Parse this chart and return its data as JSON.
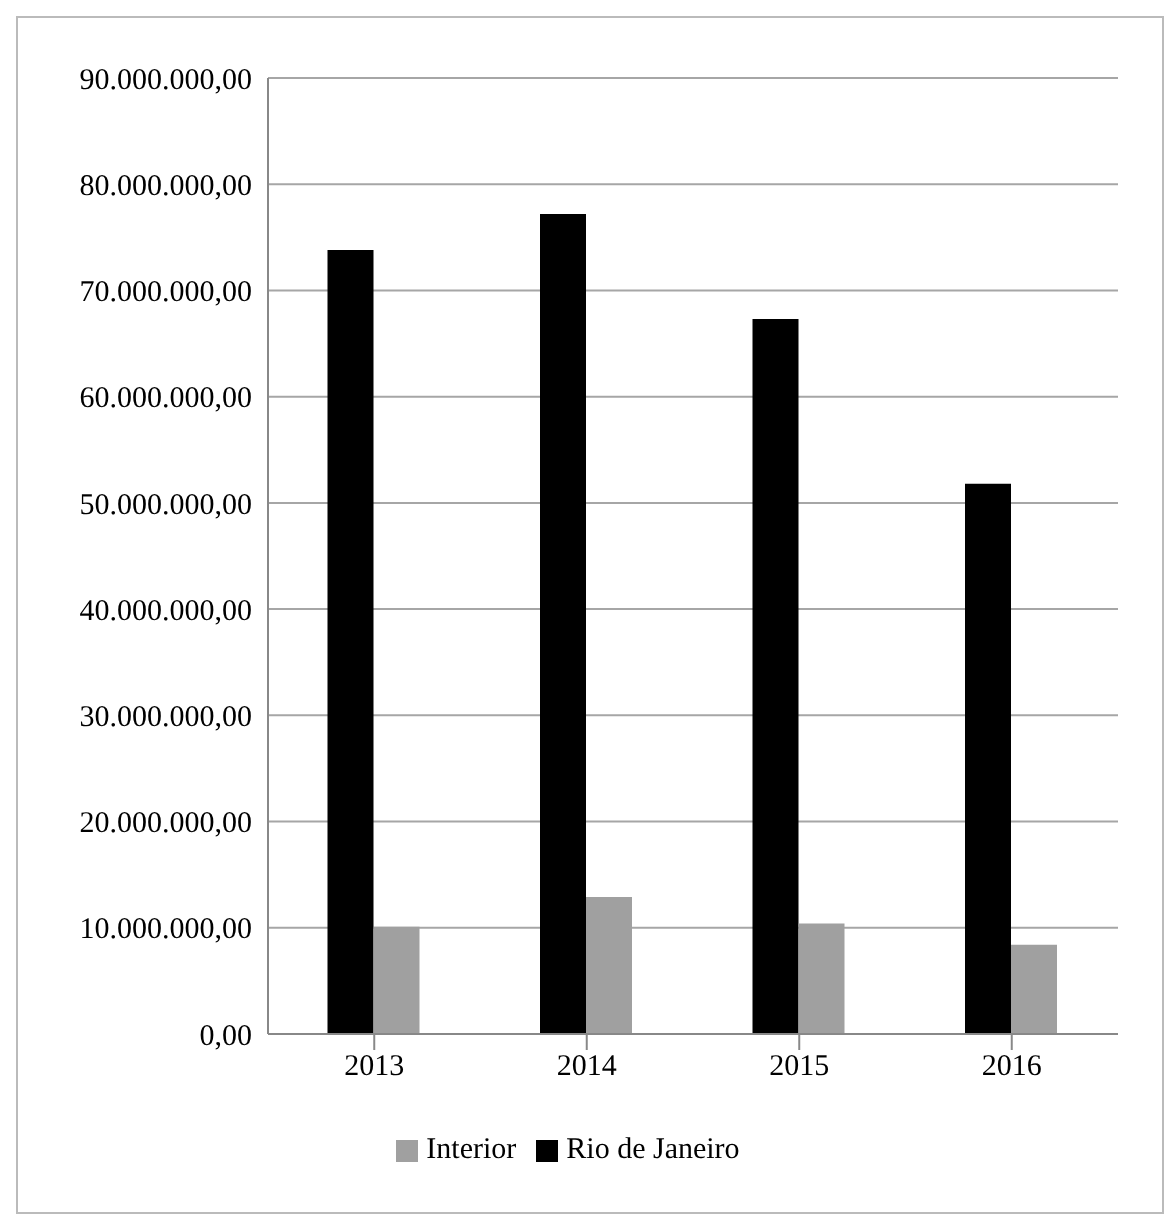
{
  "chart_data": {
    "type": "bar",
    "categories": [
      "2013",
      "2014",
      "2015",
      "2016"
    ],
    "series": [
      {
        "name": "Rio de Janeiro",
        "color": "#000000",
        "values": [
          73800000,
          77200000,
          67300000,
          51800000
        ]
      },
      {
        "name": "Interior",
        "color": "#a0a0a0",
        "values": [
          10100000,
          12900000,
          10400000,
          8400000
        ]
      }
    ],
    "ylim": [
      0,
      90000000
    ],
    "yticks": [
      {
        "value": 0,
        "label": "0,00"
      },
      {
        "value": 10000000,
        "label": "10.000.000,00"
      },
      {
        "value": 20000000,
        "label": "20.000.000,00"
      },
      {
        "value": 30000000,
        "label": "30.000.000,00"
      },
      {
        "value": 40000000,
        "label": "40.000.000,00"
      },
      {
        "value": 50000000,
        "label": "50.000.000,00"
      },
      {
        "value": 60000000,
        "label": "60.000.000,00"
      },
      {
        "value": 70000000,
        "label": "70.000.000,00"
      },
      {
        "value": 80000000,
        "label": "80.000.000,00"
      },
      {
        "value": 90000000,
        "label": "90.000.000,00"
      }
    ],
    "grid": "y",
    "legend": "bottom"
  }
}
